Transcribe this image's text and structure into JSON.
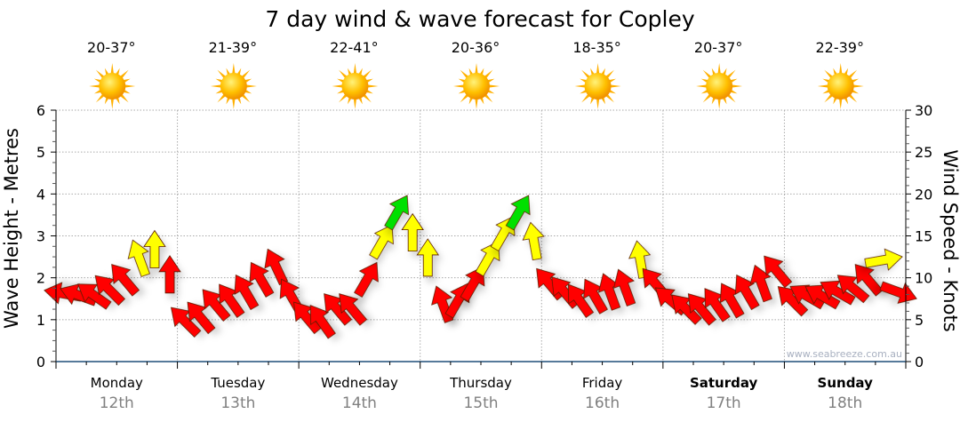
{
  "chart_data": {
    "type": "scatter",
    "title": "7 day wind & wave forecast for Copley",
    "ylabel": "Wave Height - Metres",
    "y2label": "Wind Speed - Knots",
    "ylim": [
      0,
      6
    ],
    "y2lim": [
      0,
      30
    ],
    "yticks": [
      "0",
      "1",
      "2",
      "3",
      "4",
      "5",
      "6"
    ],
    "y2ticks": [
      "0",
      "5",
      "10",
      "15",
      "20",
      "25",
      "30"
    ],
    "grid": true,
    "watermark": "www.seabreeze.com.au",
    "days": [
      {
        "name": "Monday",
        "date": "12th",
        "bold": false,
        "temp": "20-37°",
        "icon": "sun-icon"
      },
      {
        "name": "Tuesday",
        "date": "13th",
        "bold": false,
        "temp": "21-39°",
        "icon": "sun-icon"
      },
      {
        "name": "Wednesday",
        "date": "14th",
        "bold": false,
        "temp": "22-41°",
        "icon": "sun-icon"
      },
      {
        "name": "Thursday",
        "date": "15th",
        "bold": false,
        "temp": "20-36°",
        "icon": "sun-icon"
      },
      {
        "name": "Friday",
        "date": "16th",
        "bold": false,
        "temp": "18-35°",
        "icon": "sun-icon"
      },
      {
        "name": "Saturday",
        "date": "17th",
        "bold": true,
        "temp": "20-37°",
        "icon": "sun-icon"
      },
      {
        "name": "Sunday",
        "date": "18th",
        "bold": true,
        "temp": "22-39°",
        "icon": "sun-icon"
      }
    ],
    "wind_speed_knots": [
      9.8,
      9.6,
      9.6,
      10.3,
      11.5,
      14,
      15,
      12,
      6.5,
      7,
      8.5,
      9,
      10,
      11.5,
      13,
      9.5,
      7,
      6.5,
      8,
      8,
      11.5,
      16,
      19.5,
      17,
      14,
      8.5,
      9,
      11,
      14,
      17,
      19.5,
      16,
      11,
      10,
      9,
      9.5,
      10,
      10.5,
      13.8,
      11,
      9,
      8,
      8,
      8.5,
      9,
      10,
      11,
      12.5,
      9,
      9.5,
      9.5,
      10,
      10.5,
      11.5,
      13.8,
      10
    ],
    "wind_arrow_direction_deg": [
      -80,
      -70,
      -55,
      -45,
      -40,
      -20,
      0,
      0,
      -45,
      -40,
      -40,
      -35,
      -30,
      -30,
      -25,
      -30,
      -40,
      -35,
      -40,
      -40,
      30,
      30,
      30,
      0,
      0,
      -20,
      30,
      30,
      30,
      30,
      30,
      -10,
      -40,
      -40,
      -35,
      -30,
      -20,
      -20,
      -10,
      -40,
      -50,
      -45,
      -40,
      -35,
      -30,
      -30,
      -20,
      -40,
      -45,
      -60,
      -60,
      -60,
      -50,
      -40,
      80,
      110
    ],
    "color_thresholds_knots": {
      "yellow": 13.5,
      "green": 19
    },
    "colors": {
      "red": "#ff0000",
      "yellow": "#ffff00",
      "green": "#00e000",
      "axis": "#000000",
      "baseline": "#1f4e79",
      "grid": "#aaaaaa",
      "date": "#808080",
      "sun": "#ffb000"
    }
  }
}
